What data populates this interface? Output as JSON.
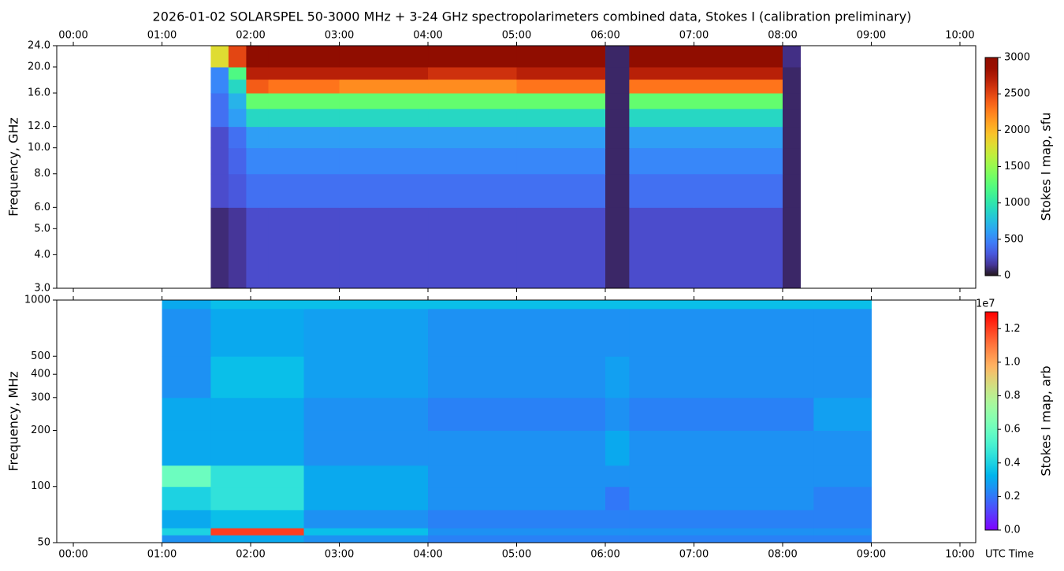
{
  "chart_data": [
    {
      "type": "heatmap",
      "title": "2026-01-02  SOLARSPEL  50-3000 MHz  +  3-24 GHz  spectropolarimeters combined data,  Stokes I  (calibration preliminary)",
      "y_label": "Frequency, GHz",
      "colorbar_label": "Stokes I map, sfu",
      "colormap": "turbo",
      "log_y": true,
      "xaxis_position": "top",
      "xlim": [
        -0.187,
        10.178
      ],
      "xticks": [
        {
          "value": 0,
          "label": "00:00"
        },
        {
          "value": 1,
          "label": "01:00"
        },
        {
          "value": 2,
          "label": "02:00"
        },
        {
          "value": 3,
          "label": "03:00"
        },
        {
          "value": 4,
          "label": "04:00"
        },
        {
          "value": 5,
          "label": "05:00"
        },
        {
          "value": 6,
          "label": "06:00"
        },
        {
          "value": 7,
          "label": "07:00"
        },
        {
          "value": 8,
          "label": "08:00"
        },
        {
          "value": 9,
          "label": "09:00"
        },
        {
          "value": 10,
          "label": "10:00"
        }
      ],
      "ylim": [
        3,
        24
      ],
      "yticks": [
        {
          "value": 3,
          "label": "3.0"
        },
        {
          "value": 4,
          "label": "4.0"
        },
        {
          "value": 5,
          "label": "5.0"
        },
        {
          "value": 6,
          "label": "6.0"
        },
        {
          "value": 8,
          "label": "8.0"
        },
        {
          "value": 10,
          "label": "10.0"
        },
        {
          "value": 12,
          "label": "12.0"
        },
        {
          "value": 16,
          "label": "16.0"
        },
        {
          "value": 20,
          "label": "20.0"
        },
        {
          "value": 24,
          "label": "24.0"
        }
      ],
      "clim": [
        0,
        3000
      ],
      "cticks": [
        0,
        500,
        1000,
        1500,
        2000,
        2500,
        3000
      ],
      "x_edges": [
        1.55,
        1.75,
        1.95,
        2.2,
        3,
        4,
        5,
        6.0,
        6.27,
        7,
        8.0,
        8.2
      ],
      "y_edges": [
        3,
        6,
        8,
        10,
        12,
        14,
        16,
        18,
        20,
        24
      ],
      "z": [
        [
          100,
          150,
          250,
          250,
          250,
          250,
          250,
          80,
          250,
          250,
          80
        ],
        [
          250,
          300,
          400,
          400,
          400,
          400,
          400,
          80,
          400,
          400,
          80
        ],
        [
          250,
          350,
          500,
          500,
          500,
          500,
          500,
          80,
          500,
          500,
          80
        ],
        [
          250,
          400,
          600,
          600,
          600,
          600,
          600,
          80,
          600,
          600,
          80
        ],
        [
          400,
          600,
          900,
          900,
          900,
          900,
          900,
          80,
          900,
          900,
          80
        ],
        [
          400,
          700,
          1300,
          1300,
          1300,
          1300,
          1300,
          80,
          1300,
          1300,
          80
        ],
        [
          500,
          900,
          2400,
          2300,
          2200,
          2200,
          2300,
          80,
          2300,
          2300,
          80
        ],
        [
          500,
          1200,
          2700,
          2700,
          2700,
          2600,
          2700,
          80,
          2700,
          2700,
          80
        ],
        [
          1800,
          2500,
          3000,
          3000,
          3000,
          3000,
          3000,
          80,
          3000,
          3000,
          120
        ]
      ]
    },
    {
      "type": "heatmap",
      "x_label": "UTC Time",
      "y_label": "Frequency, MHz",
      "colorbar_label": "Stokes I map, arb",
      "colorbar_offset": "1e7",
      "colormap": "rainbow",
      "log_y": true,
      "xaxis_position": "bottom",
      "xlim": [
        -0.187,
        10.178
      ],
      "xticks": [
        {
          "value": 0,
          "label": "00:00"
        },
        {
          "value": 1,
          "label": "01:00"
        },
        {
          "value": 2,
          "label": "02:00"
        },
        {
          "value": 3,
          "label": "03:00"
        },
        {
          "value": 4,
          "label": "04:00"
        },
        {
          "value": 5,
          "label": "05:00"
        },
        {
          "value": 6,
          "label": "06:00"
        },
        {
          "value": 7,
          "label": "07:00"
        },
        {
          "value": 8,
          "label": "08:00"
        },
        {
          "value": 9,
          "label": "09:00"
        },
        {
          "value": 10,
          "label": "10:00"
        }
      ],
      "ylim": [
        50,
        1000
      ],
      "yticks": [
        50,
        100,
        200,
        300,
        400,
        500,
        1000
      ],
      "clim": [
        0,
        1.3
      ],
      "cticks": [
        {
          "value": 0,
          "label": "0.0"
        },
        0.2,
        0.4,
        0.6,
        0.8,
        {
          "value": 1,
          "label": "1.0"
        },
        1.2
      ],
      "x_edges": [
        1.0,
        1.55,
        2.6,
        4,
        6,
        6.27,
        8.35,
        9.0
      ],
      "y_edges": [
        50,
        55,
        60,
        75,
        100,
        130,
        200,
        300,
        500,
        900,
        1000
      ],
      "z": [
        [
          0.25,
          0.3,
          0.25,
          0.22,
          0.22,
          0.22,
          0.22
        ],
        [
          0.4,
          1.2,
          0.35,
          0.25,
          0.25,
          0.25,
          0.25
        ],
        [
          0.3,
          0.35,
          0.25,
          0.22,
          0.22,
          0.22,
          0.22
        ],
        [
          0.4,
          0.45,
          0.3,
          0.25,
          0.2,
          0.25,
          0.22
        ],
        [
          0.6,
          0.45,
          0.3,
          0.25,
          0.25,
          0.25,
          0.25
        ],
        [
          0.3,
          0.3,
          0.25,
          0.25,
          0.3,
          0.25,
          0.25
        ],
        [
          0.3,
          0.3,
          0.25,
          0.22,
          0.25,
          0.22,
          0.28
        ],
        [
          0.25,
          0.35,
          0.28,
          0.25,
          0.28,
          0.25,
          0.25
        ],
        [
          0.25,
          0.3,
          0.28,
          0.25,
          0.25,
          0.25,
          0.25
        ],
        [
          0.3,
          0.35,
          0.35,
          0.35,
          0.35,
          0.35,
          0.35
        ]
      ]
    }
  ]
}
